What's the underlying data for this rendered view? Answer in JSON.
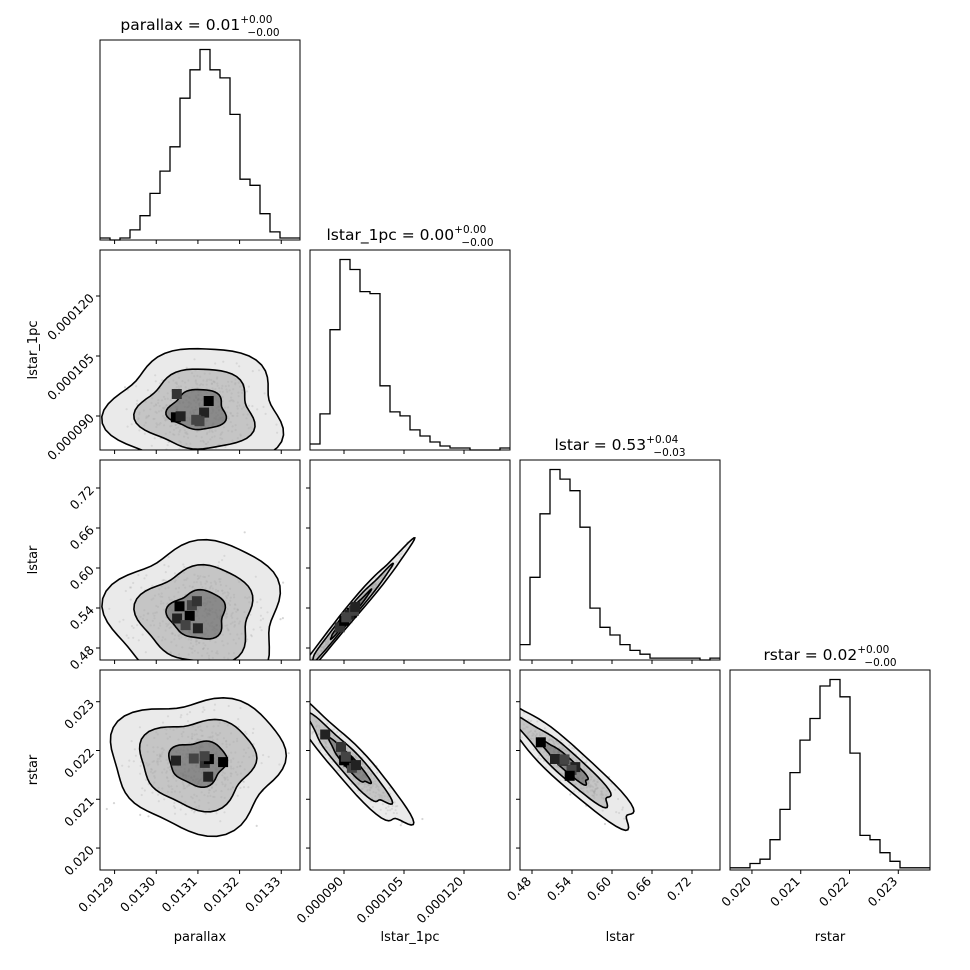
{
  "chart_data": {
    "type": "corner",
    "parameters": [
      "parallax",
      "lstar_1pc",
      "lstar",
      "rstar"
    ],
    "axis_labels": {
      "parallax": "parallax",
      "lstar_1pc": "lstar_1pc",
      "lstar": "lstar",
      "rstar": "rstar"
    },
    "ranges": {
      "parallax": [
        0.012865,
        0.013345
      ],
      "lstar_1pc": [
        8.15e-05,
        0.0001315
      ],
      "lstar": [
        0.462,
        0.762
      ],
      "rstar": [
        0.01955,
        0.02365
      ]
    },
    "ticks": {
      "parallax": {
        "values": [
          0.0129,
          0.013,
          0.0131,
          0.0132,
          0.0133
        ],
        "labels": [
          "0.0129",
          "0.0130",
          "0.0131",
          "0.0132",
          "0.0133"
        ]
      },
      "lstar_1pc": {
        "values": [
          9e-05,
          0.000105,
          0.00012
        ],
        "labels": [
          "0.000090",
          "0.000105",
          "0.000120"
        ]
      },
      "lstar": {
        "values": [
          0.48,
          0.54,
          0.6,
          0.66,
          0.72
        ],
        "labels": [
          "0.48",
          "0.54",
          "0.60",
          "0.66",
          "0.72"
        ]
      },
      "rstar": {
        "values": [
          0.02,
          0.021,
          0.022,
          0.023
        ],
        "labels": [
          "0.020",
          "0.021",
          "0.022",
          "0.023"
        ]
      }
    },
    "titles": {
      "parallax": {
        "prefix": "parallax = 0.01",
        "sup": "+0.00",
        "sub": "−0.00"
      },
      "lstar_1pc": {
        "prefix": "lstar_1pc = 0.00",
        "sup": "+0.00",
        "sub": "−0.00"
      },
      "lstar": {
        "prefix": "lstar = 0.53",
        "sup": "+0.04",
        "sub": "−0.03"
      },
      "rstar": {
        "prefix": "rstar = 0.02",
        "sup": "+0.00",
        "sub": "−0.00"
      }
    },
    "histograms_1d": {
      "parallax": [
        1,
        0,
        1,
        5,
        12,
        23,
        34,
        46,
        70,
        84,
        94,
        84,
        80,
        62,
        30,
        27,
        13,
        4,
        1,
        1
      ],
      "lstar_1pc": [
        3,
        18,
        60,
        95,
        90,
        79,
        78,
        32,
        19,
        17,
        10,
        7,
        4,
        2,
        1,
        1,
        0,
        0,
        0,
        1
      ],
      "lstar": [
        8,
        43,
        76,
        99,
        94,
        88,
        69,
        27,
        17,
        13,
        8,
        5,
        3,
        1,
        1,
        1,
        1,
        1,
        0,
        1
      ],
      "rstar": [
        1,
        1,
        3,
        5,
        14,
        28,
        45,
        60,
        70,
        85,
        88,
        80,
        54,
        16,
        14,
        8,
        4,
        1,
        1,
        1
      ]
    },
    "pairs": [
      {
        "x": "parallax",
        "y": "lstar_1pc",
        "center": [
          0.0131,
          9.15e-05
        ],
        "sigma": [
          6.8e-05,
          5e-06
        ],
        "rho": 0.0
      },
      {
        "x": "parallax",
        "y": "lstar",
        "center": [
          0.0131,
          0.53
        ],
        "sigma": [
          6.8e-05,
          0.036
        ],
        "rho": 0.0
      },
      {
        "x": "parallax",
        "y": "rstar",
        "center": [
          0.0131,
          0.02175
        ],
        "sigma": [
          6.8e-05,
          0.00045
        ],
        "rho": 0.0
      },
      {
        "x": "lstar_1pc",
        "y": "lstar",
        "center": [
          9.15e-05,
          0.53
        ],
        "sigma": [
          5e-06,
          0.036
        ],
        "rho": 0.99
      },
      {
        "x": "lstar_1pc",
        "y": "rstar",
        "center": [
          9.15e-05,
          0.02175
        ],
        "sigma": [
          5e-06,
          0.00045
        ],
        "rho": -0.93
      },
      {
        "x": "lstar",
        "y": "rstar",
        "center": [
          0.53,
          0.02175
        ],
        "sigma": [
          0.036,
          0.00045
        ],
        "rho": -0.93
      }
    ],
    "contour_levels_sigma": [
      1,
      2,
      3
    ],
    "grid": false,
    "legend": "none"
  }
}
